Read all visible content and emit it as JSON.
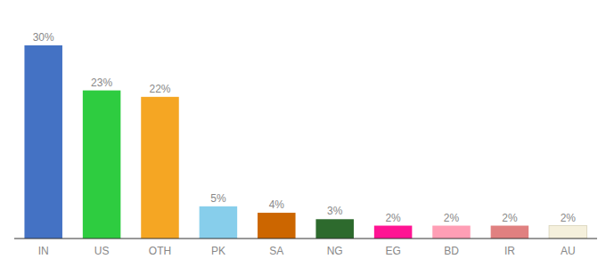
{
  "chart_data": {
    "type": "bar",
    "categories": [
      "IN",
      "US",
      "OTH",
      "PK",
      "SA",
      "NG",
      "EG",
      "BD",
      "IR",
      "AU"
    ],
    "values": [
      30,
      23,
      22,
      5,
      4,
      3,
      2,
      2,
      2,
      2
    ],
    "value_labels": [
      "30%",
      "23%",
      "22%",
      "5%",
      "4%",
      "3%",
      "2%",
      "2%",
      "2%",
      "2%"
    ],
    "colors": [
      "#4472c4",
      "#2ecc40",
      "#f5a623",
      "#87ceeb",
      "#cc6600",
      "#2d6a2d",
      "#ff1493",
      "#ff9eb5",
      "#e08080",
      "#f5f0dc"
    ],
    "ylim": [
      0,
      34
    ],
    "data_labels": true,
    "tick_labels": "x",
    "grid": false
  }
}
